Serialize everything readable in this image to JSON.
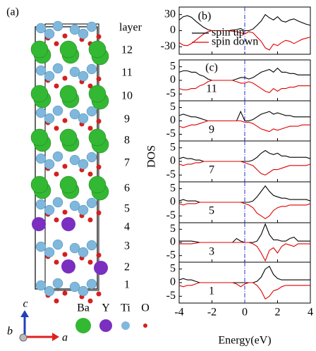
{
  "figure": {
    "ylabel": "DOS",
    "xlabel": "Energy(eV)"
  },
  "structure": {
    "panel_label": "(a)",
    "layer_title": "layer",
    "layers": [
      "12",
      "11",
      "10",
      "9",
      "8",
      "7",
      "6",
      "5",
      "4",
      "3",
      "2",
      "1"
    ],
    "atoms": [
      {
        "name": "Ba",
        "color": "#33b833"
      },
      {
        "name": "Y",
        "color": "#7a2fc0"
      },
      {
        "name": "Ti",
        "color": "#7fb8dc"
      },
      {
        "name": "O",
        "color": "#d42020"
      }
    ],
    "axes": [
      {
        "name": "c",
        "color": "#1f3fbf"
      },
      {
        "name": "b",
        "color": "#33cc33"
      },
      {
        "name": "a",
        "color": "#e02020"
      }
    ]
  },
  "chart_data": [
    {
      "type": "line",
      "panel_label": "(b)",
      "xlim": [
        -4,
        4
      ],
      "ylim": [
        -44,
        44
      ],
      "yticks": [
        30,
        0,
        -30
      ],
      "vline": 0,
      "legend": "upper-left",
      "x": [
        -4,
        -3.75,
        -3.5,
        -3.25,
        -3,
        -2.75,
        -2.5,
        -2.25,
        -2,
        -1.75,
        -1.5,
        -1.25,
        -1,
        -0.75,
        -0.5,
        -0.25,
        0,
        0.25,
        0.5,
        0.75,
        1,
        1.25,
        1.5,
        1.75,
        2,
        2.25,
        2.5,
        2.75,
        3,
        3.25,
        3.5,
        3.75,
        4
      ],
      "series": [
        {
          "name": "spin up",
          "color": "#000000",
          "values": [
            20,
            26,
            28,
            25,
            18,
            12,
            6,
            2,
            0,
            0,
            0,
            0,
            0,
            1,
            2,
            4,
            0,
            0,
            3,
            10,
            18,
            30,
            24,
            20,
            26,
            18,
            16,
            20,
            22,
            18,
            15,
            12,
            10
          ]
        },
        {
          "name": "spin down",
          "color": "#e00000",
          "values": [
            -22,
            -27,
            -28,
            -24,
            -18,
            -12,
            -6,
            -2,
            0,
            0,
            0,
            0,
            0,
            -1,
            -2,
            -4,
            -6,
            -2,
            -4,
            -12,
            -20,
            -32,
            -36,
            -25,
            -28,
            -22,
            -18,
            -20,
            -24,
            -20,
            -16,
            -14,
            -12
          ]
        }
      ]
    },
    {
      "type": "line",
      "panel_label": "(c)",
      "label": "11",
      "xlim": [
        -4,
        4
      ],
      "ylim": [
        -7.5,
        7.5
      ],
      "yticks": [
        5,
        0,
        -5
      ],
      "vline": 0,
      "x": [
        -4,
        -3.75,
        -3.5,
        -3.25,
        -3,
        -2.75,
        -2.5,
        -2.25,
        -2,
        -1.75,
        -1.5,
        -1.25,
        -1,
        -0.75,
        -0.5,
        -0.25,
        0,
        0.25,
        0.5,
        0.75,
        1,
        1.25,
        1.5,
        1.75,
        2,
        2.25,
        2.5,
        2.75,
        3,
        3.25,
        3.5,
        3.75,
        4
      ],
      "series": [
        {
          "color": "#000000",
          "values": [
            3,
            3.5,
            3.5,
            3,
            3,
            2,
            1.5,
            0.5,
            0,
            0,
            0,
            0,
            0,
            0,
            0.5,
            1,
            1,
            0.5,
            1,
            2,
            3,
            3.5,
            4,
            3,
            4.5,
            3,
            3,
            2.5,
            2.5,
            2,
            2,
            2,
            2
          ]
        },
        {
          "color": "#e00000",
          "values": [
            -3,
            -3.5,
            -3.5,
            -3,
            -3,
            -2,
            -1.5,
            -0.5,
            0,
            0,
            0,
            0,
            0,
            0,
            -0.5,
            -1,
            -1,
            -0.5,
            -1,
            -2,
            -3,
            -4,
            -4.5,
            -3,
            -4,
            -3,
            -3,
            -2.5,
            -2.5,
            -2,
            -2,
            -2,
            -2
          ]
        }
      ]
    },
    {
      "type": "line",
      "label": "9",
      "xlim": [
        -4,
        4
      ],
      "ylim": [
        -7.5,
        7.5
      ],
      "yticks": [
        5,
        0,
        -5
      ],
      "vline": 0,
      "x": [
        -4,
        -3.75,
        -3.5,
        -3.25,
        -3,
        -2.75,
        -2.5,
        -2.25,
        -2,
        -1.75,
        -1.5,
        -1.25,
        -1,
        -0.75,
        -0.5,
        -0.25,
        0,
        0.25,
        0.5,
        0.75,
        1,
        1.25,
        1.5,
        1.75,
        2,
        2.25,
        2.5,
        2.75,
        3,
        3.25,
        3.5,
        3.75,
        4
      ],
      "series": [
        {
          "color": "#000000",
          "values": [
            2,
            2.5,
            2,
            1.5,
            1.5,
            1,
            0.5,
            0,
            0,
            0,
            0,
            0,
            0,
            0,
            0,
            3.5,
            0,
            0,
            0.5,
            1.5,
            2.5,
            3,
            3.5,
            2.5,
            3,
            2.5,
            2,
            2,
            1.5,
            1.5,
            1.5,
            1.5,
            1.5
          ]
        },
        {
          "color": "#e00000",
          "values": [
            -2,
            -2.5,
            -2,
            -1.5,
            -1.5,
            -1,
            -0.5,
            0,
            0,
            0,
            0,
            0,
            0,
            0,
            0,
            0,
            -0.5,
            -0.5,
            -1,
            -2,
            -3,
            -3.5,
            -4,
            -3,
            -3.5,
            -3,
            -2.5,
            -2,
            -2,
            -2,
            -1.5,
            -1.5,
            -1.5
          ]
        }
      ]
    },
    {
      "type": "line",
      "label": "7",
      "xlim": [
        -4,
        4
      ],
      "ylim": [
        -7.5,
        7.5
      ],
      "yticks": [
        5,
        0,
        -5
      ],
      "vline": 0,
      "x": [
        -4,
        -3.75,
        -3.5,
        -3.25,
        -3,
        -2.75,
        -2.5,
        -2.25,
        -2,
        -1.75,
        -1.5,
        -1.25,
        -1,
        -0.75,
        -0.5,
        -0.25,
        0,
        0.25,
        0.5,
        0.75,
        1,
        1.25,
        1.5,
        1.75,
        2,
        2.25,
        2.5,
        2.75,
        3,
        3.25,
        3.5,
        3.75,
        4
      ],
      "series": [
        {
          "color": "#000000",
          "values": [
            1,
            1.5,
            1,
            1,
            0.5,
            0.5,
            0,
            0,
            0,
            0,
            0,
            0,
            0,
            0,
            0,
            0,
            0,
            0,
            0.5,
            1.5,
            3,
            4,
            3,
            2.5,
            3,
            2,
            2,
            1.5,
            1.5,
            1.5,
            1.5,
            1.5,
            1
          ]
        },
        {
          "color": "#e00000",
          "values": [
            -1,
            -1.5,
            -1,
            -1,
            -0.5,
            -0.5,
            0,
            0,
            0,
            0,
            0,
            0,
            0,
            0,
            0,
            0,
            -0.5,
            -1,
            -1.5,
            -3,
            -4.5,
            -5,
            -4,
            -3,
            -3,
            -2.5,
            -2,
            -1.5,
            -1.5,
            -1.5,
            -1.5,
            -1.5,
            -1
          ]
        }
      ]
    },
    {
      "type": "line",
      "label": "5",
      "xlim": [
        -4,
        4
      ],
      "ylim": [
        -7.5,
        7.5
      ],
      "yticks": [
        5,
        0,
        -5
      ],
      "vline": 0,
      "x": [
        -4,
        -3.75,
        -3.5,
        -3.25,
        -3,
        -2.75,
        -2.5,
        -2.25,
        -2,
        -1.75,
        -1.5,
        -1.25,
        -1,
        -0.75,
        -0.5,
        -0.25,
        0,
        0.25,
        0.5,
        0.75,
        1,
        1.25,
        1.5,
        1.75,
        2,
        2.25,
        2.5,
        2.75,
        3,
        3.25,
        3.5,
        3.75,
        4
      ],
      "series": [
        {
          "color": "#000000",
          "values": [
            0.5,
            1,
            0.5,
            0.5,
            0.5,
            0,
            0,
            0,
            0,
            0,
            0,
            0,
            0,
            0,
            0,
            0,
            0,
            0,
            0.5,
            2,
            4,
            6,
            4,
            2.5,
            2,
            1.5,
            1.5,
            1,
            1,
            1,
            1,
            1,
            0.5
          ]
        },
        {
          "color": "#e00000",
          "values": [
            -0.5,
            -1,
            -0.5,
            -0.5,
            -0.5,
            0,
            0,
            0,
            0,
            0,
            0,
            0,
            0,
            0,
            0,
            0,
            -0.5,
            -1,
            -2,
            -4,
            -5,
            -6,
            -5,
            -3,
            -2,
            -1.5,
            -1.5,
            -1,
            -1,
            -1,
            -1,
            -1,
            -0.5
          ]
        }
      ]
    },
    {
      "type": "line",
      "label": "3",
      "xlim": [
        -4,
        4
      ],
      "ylim": [
        -7.5,
        7.5
      ],
      "yticks": [
        5,
        0,
        -5
      ],
      "vline": 0,
      "x": [
        -4,
        -3.75,
        -3.5,
        -3.25,
        -3,
        -2.75,
        -2.5,
        -2.25,
        -2,
        -1.75,
        -1.5,
        -1.25,
        -1,
        -0.75,
        -0.5,
        -0.25,
        0,
        0.25,
        0.5,
        0.75,
        1,
        1.25,
        1.5,
        1.75,
        2,
        2.25,
        2.5,
        2.75,
        3,
        3.25,
        3.5,
        3.75,
        4
      ],
      "series": [
        {
          "color": "#000000",
          "values": [
            0.5,
            0.5,
            0.5,
            0.5,
            0.3,
            0,
            0,
            0,
            0,
            0,
            0,
            0,
            0,
            0,
            1.5,
            0.5,
            0,
            0,
            0,
            0.5,
            3,
            7,
            3,
            1,
            1,
            0.5,
            0.5,
            1.5,
            2,
            0.5,
            0.5,
            0.5,
            0.5
          ]
        },
        {
          "color": "#e00000",
          "values": [
            -0.5,
            -0.5,
            -0.5,
            -0.5,
            -0.3,
            0,
            0,
            0,
            0,
            0,
            0,
            0,
            0,
            0,
            0,
            0,
            0,
            0,
            -0.5,
            -1.5,
            -4,
            -7,
            -3,
            -2,
            -4,
            -1.5,
            -0.5,
            -1,
            -1.5,
            -0.5,
            -0.5,
            -0.5,
            -0.5
          ]
        }
      ]
    },
    {
      "type": "line",
      "label": "1",
      "xlim": [
        -4,
        4
      ],
      "ylim": [
        -7.5,
        7.5
      ],
      "yticks": [
        5,
        0,
        -5
      ],
      "xticks": [
        -4,
        -2,
        0,
        2,
        4
      ],
      "vline": 0,
      "x": [
        -4,
        -3.75,
        -3.5,
        -3.25,
        -3,
        -2.75,
        -2.5,
        -2.25,
        -2,
        -1.75,
        -1.5,
        -1.25,
        -1,
        -0.75,
        -0.5,
        -0.25,
        0,
        0.25,
        0.5,
        0.75,
        1,
        1.25,
        1.5,
        1.75,
        2,
        2.25,
        2.5,
        2.75,
        3,
        3.25,
        3.5,
        3.75,
        4
      ],
      "series": [
        {
          "color": "#000000",
          "values": [
            1,
            1.5,
            1,
            1,
            0.5,
            0,
            0,
            0,
            0,
            0,
            0,
            0,
            0,
            0,
            0,
            0,
            0,
            0,
            0,
            0.5,
            2,
            5,
            6,
            3,
            1.5,
            1,
            1,
            1,
            1,
            1,
            1,
            1,
            1
          ]
        },
        {
          "color": "#e00000",
          "values": [
            -1,
            -1.5,
            -1,
            -1,
            -0.5,
            0,
            0,
            0,
            0,
            0,
            0,
            0,
            0,
            0,
            -0.5,
            -1.5,
            -0.5,
            0,
            0,
            -1,
            -3,
            -6,
            -5,
            -3,
            -2.5,
            -1.5,
            -1,
            -1,
            -1,
            -1,
            -1,
            -1,
            -1
          ]
        }
      ]
    }
  ]
}
